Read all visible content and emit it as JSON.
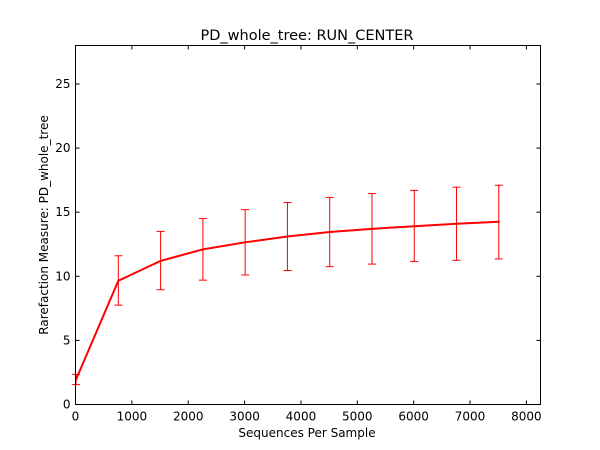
{
  "chart_data": {
    "type": "line",
    "title": "PD_whole_tree: RUN_CENTER",
    "xlabel": "Sequences Per Sample",
    "ylabel": "Rarefaction Measure: PD_whole_tree",
    "xlim": [
      0,
      8250
    ],
    "ylim": [
      0,
      28
    ],
    "xticks": [
      0,
      1000,
      2000,
      3000,
      4000,
      5000,
      6000,
      7000,
      8000
    ],
    "yticks": [
      0,
      5,
      10,
      15,
      20,
      25
    ],
    "grid": false,
    "legend": "none",
    "series": [
      {
        "color": "#ff0000",
        "x": [
          10,
          760,
          1510,
          2260,
          3010,
          3760,
          4510,
          5260,
          6010,
          6760,
          7510
        ],
        "y": [
          1.95,
          9.65,
          11.2,
          12.1,
          12.65,
          13.1,
          13.45,
          13.7,
          13.9,
          14.1,
          14.25
        ],
        "err_low": [
          1.55,
          7.75,
          8.95,
          9.7,
          10.1,
          10.45,
          10.75,
          10.95,
          11.15,
          11.25,
          11.35
        ],
        "err_high": [
          2.35,
          11.6,
          13.5,
          14.5,
          15.2,
          15.75,
          16.15,
          16.45,
          16.7,
          16.95,
          17.1
        ]
      }
    ]
  }
}
